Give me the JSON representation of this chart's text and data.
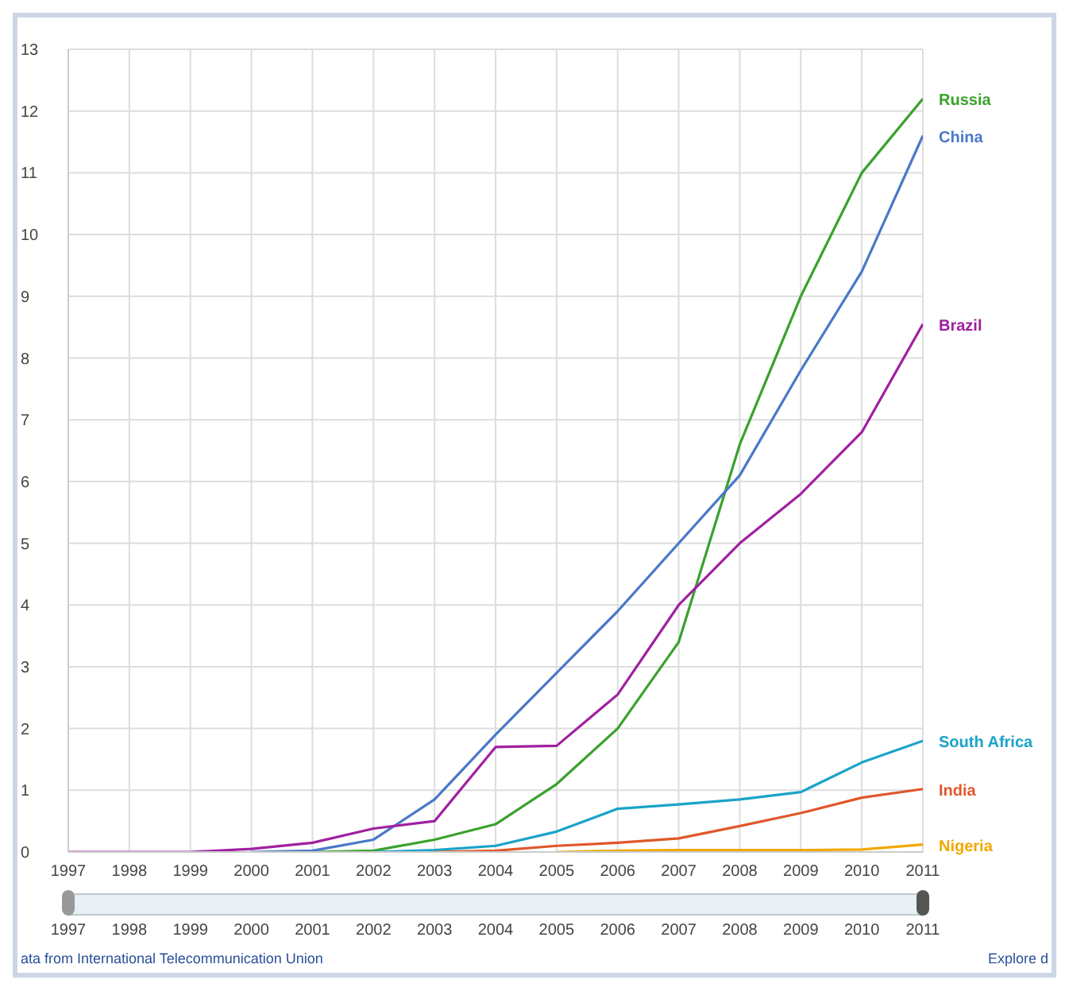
{
  "chart_data": {
    "type": "line",
    "x": [
      1997,
      1998,
      1999,
      2000,
      2001,
      2002,
      2003,
      2004,
      2005,
      2006,
      2007,
      2008,
      2009,
      2010,
      2011
    ],
    "series": [
      {
        "name": "Russia",
        "color": "#3aa12d",
        "values": [
          null,
          null,
          null,
          null,
          0,
          0.02,
          0.2,
          0.45,
          1.1,
          2.0,
          3.4,
          6.6,
          9.0,
          11.0,
          12.2
        ]
      },
      {
        "name": "China",
        "color": "#4a78c8",
        "values": [
          null,
          null,
          null,
          0,
          0.02,
          0.2,
          0.85,
          1.9,
          2.9,
          3.9,
          5.0,
          6.1,
          7.8,
          9.4,
          11.6
        ]
      },
      {
        "name": "Brazil",
        "color": "#a020a0",
        "values": [
          0,
          0,
          0,
          0.05,
          0.15,
          0.38,
          0.5,
          1.7,
          1.72,
          2.55,
          4.0,
          5.0,
          5.8,
          6.8,
          8.55
        ]
      },
      {
        "name": "South Africa",
        "color": "#1aa3c8",
        "values": [
          null,
          null,
          null,
          null,
          null,
          0,
          0.03,
          0.1,
          0.33,
          0.7,
          0.77,
          0.85,
          0.97,
          1.45,
          1.8
        ]
      },
      {
        "name": "India",
        "color": "#e0572a",
        "values": [
          null,
          null,
          null,
          null,
          null,
          null,
          0,
          0.02,
          0.1,
          0.15,
          0.22,
          0.42,
          0.63,
          0.88,
          1.02
        ]
      },
      {
        "name": "Nigeria",
        "color": "#f0a800",
        "values": [
          null,
          null,
          null,
          null,
          null,
          null,
          null,
          null,
          0,
          0.02,
          0.03,
          0.03,
          0.03,
          0.04,
          0.12
        ]
      }
    ],
    "xlim": [
      1997,
      2011
    ],
    "xticks": [
      1997,
      1998,
      1999,
      2000,
      2001,
      2002,
      2003,
      2004,
      2005,
      2006,
      2007,
      2008,
      2009,
      2010,
      2011
    ],
    "x2lim": [
      1997,
      2011
    ],
    "x2ticks": [
      1997,
      1998,
      1999,
      2000,
      2001,
      2002,
      2003,
      2004,
      2005,
      2006,
      2007,
      2008,
      2009,
      2010,
      2011
    ],
    "ylim": [
      0,
      13
    ],
    "yticks": [
      0,
      1,
      2,
      3,
      4,
      5,
      6,
      7,
      8,
      9,
      10,
      11,
      12,
      13
    ],
    "grid": true,
    "marker": "none",
    "line_style": "solid",
    "annotations": [
      "ata from International Telecommunication Union",
      "Explore d"
    ]
  }
}
